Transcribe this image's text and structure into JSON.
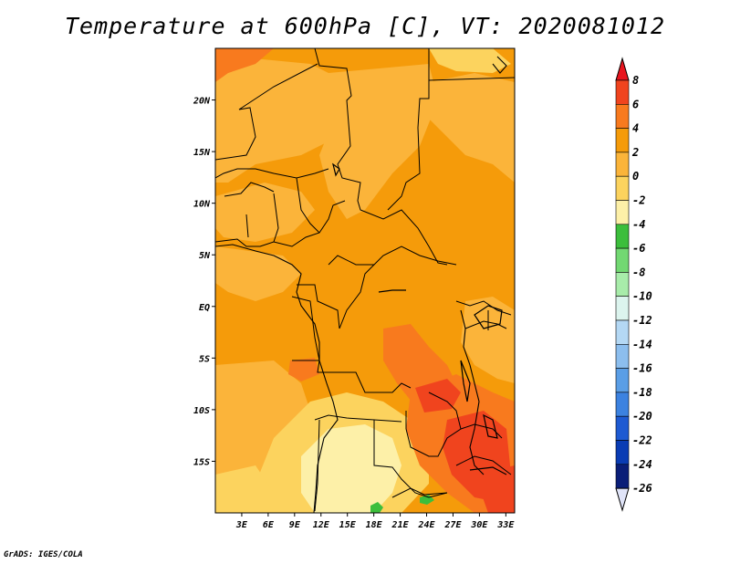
{
  "title": "Temperature at 600hPa [C], VT: 2020081012",
  "credit": "GrADS: IGES/COLA",
  "map": {
    "type": "filled-contour-map",
    "variable": "Temperature",
    "level": "600hPa",
    "units": "C",
    "valid_time": "2020081012",
    "lon_range": [
      0,
      34
    ],
    "lat_range": [
      -20,
      25
    ],
    "lat_ticks": [
      {
        "label": "20N",
        "value": 20
      },
      {
        "label": "15N",
        "value": 15
      },
      {
        "label": "10N",
        "value": 10
      },
      {
        "label": "5N",
        "value": 5
      },
      {
        "label": "EQ",
        "value": 0
      },
      {
        "label": "5S",
        "value": -5
      },
      {
        "label": "10S",
        "value": -10
      },
      {
        "label": "15S",
        "value": -15
      }
    ],
    "lon_ticks": [
      {
        "label": "3E",
        "value": 3
      },
      {
        "label": "6E",
        "value": 6
      },
      {
        "label": "9E",
        "value": 9
      },
      {
        "label": "12E",
        "value": 12
      },
      {
        "label": "15E",
        "value": 15
      },
      {
        "label": "18E",
        "value": 18
      },
      {
        "label": "21E",
        "value": 21
      },
      {
        "label": "24E",
        "value": 24
      },
      {
        "label": "27E",
        "value": 27
      },
      {
        "label": "30E",
        "value": 30
      },
      {
        "label": "33E",
        "value": 33
      }
    ],
    "fill_colors": {
      "gt_8": "#e8141e",
      "6_8": "#f0441e",
      "4_6": "#f87a1e",
      "2_4": "#f59b0a",
      "0_2": "#fbb43a",
      "m2_0": "#fcd35e",
      "m4_m2": "#fdf0a8",
      "m6_m4": "#3cbe3c",
      "m8_m6": "#72d872",
      "m10_m8": "#a8ecaa",
      "m12_m10": "#dcf4ee"
    }
  },
  "colorbar": {
    "labels": [
      "8",
      "6",
      "4",
      "2",
      "0",
      "-2",
      "-4",
      "-6",
      "-8",
      "-10",
      "-12",
      "-14",
      "-16",
      "-18",
      "-20",
      "-22",
      "-24",
      "-26"
    ],
    "colors": [
      "#e8141e",
      "#f0441e",
      "#f87a1e",
      "#f59b0a",
      "#fbb43a",
      "#fcd35e",
      "#fdf0a8",
      "#3cbe3c",
      "#72d872",
      "#a8ecaa",
      "#dcf4ee",
      "#b4d8f4",
      "#8cbeee",
      "#5a9ee6",
      "#3c82e0",
      "#1e5ad2",
      "#0a3cb4",
      "#0a1e78",
      "#e0e4f8"
    ]
  }
}
